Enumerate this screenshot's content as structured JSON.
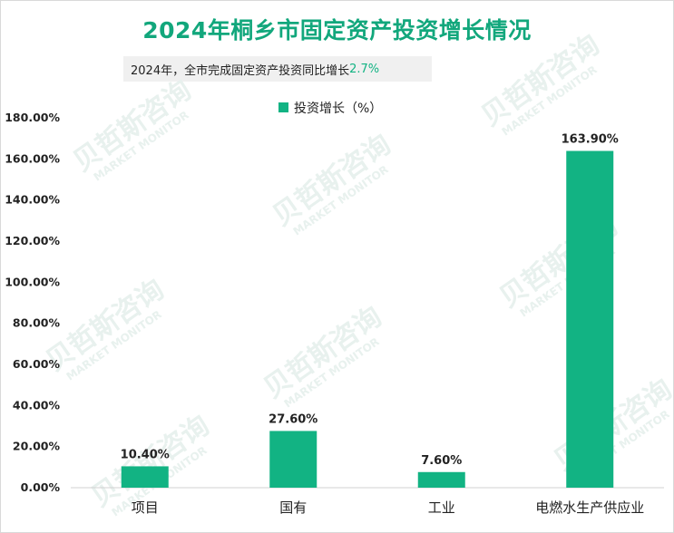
{
  "header": {
    "title": "2024年桐乡市固定资产投资增长情况",
    "subtitle_prefix": "2024年，全市完成固定资产投资同比增长",
    "subtitle_value": "2.7%"
  },
  "watermark": {
    "text": "贝哲斯咨询",
    "subtext": "MARKET MONITOR"
  },
  "colors": {
    "bar": "#12b383",
    "title": "#12a77c",
    "highlight": "#12b383"
  },
  "chart_data": {
    "type": "bar",
    "categories": [
      "项目",
      "国有",
      "工业",
      "电燃水生产供应业"
    ],
    "series": [
      {
        "name": "投资增长（%）",
        "values": [
          10.4,
          27.6,
          7.6,
          163.9
        ]
      }
    ],
    "data_labels": [
      "10.40%",
      "27.60%",
      "7.60%",
      "163.90%"
    ],
    "ylim": [
      0,
      180
    ],
    "yticks": [
      "0.00%",
      "20.00%",
      "40.00%",
      "60.00%",
      "80.00%",
      "100.00%",
      "120.00%",
      "140.00%",
      "160.00%",
      "180.00%"
    ],
    "grid": false,
    "legend": "top-center"
  }
}
